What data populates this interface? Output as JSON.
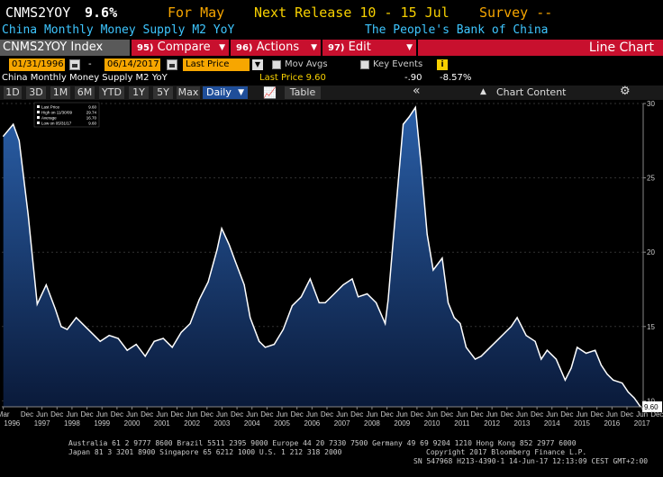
{
  "header": {
    "ticker": "CNMS2YOY",
    "price": "9.6%",
    "period": "For May",
    "next_release": "Next Release 10 - 15 Jul",
    "survey": "Survey --"
  },
  "subheader": {
    "description": "China Monthly Money Supply M2 YoY",
    "source": "The People's Bank of China"
  },
  "toolbar": {
    "index_label": "CNMS2YOY Index",
    "compare_code": "95)",
    "compare_label": "Compare",
    "actions_code": "96)",
    "actions_label": "Actions",
    "edit_code": "97)",
    "edit_label": "Edit",
    "chart_type": "Line Chart"
  },
  "controls": {
    "start_date": "01/31/1996",
    "dash": "-",
    "end_date": "06/14/2017",
    "field": "Last Price",
    "mov_avgs": "Mov Avgs",
    "key_events": "Key Events",
    "info_icon": "i"
  },
  "legend_row": {
    "name": "China Monthly Money Supply M2 YoY",
    "last_price": "Last Price 9.60",
    "change": "-.90",
    "change_pct": "-8.57%"
  },
  "period_bar": {
    "buttons": [
      "1D",
      "3D",
      "1M",
      "6M",
      "YTD",
      "1Y",
      "5Y",
      "Max"
    ],
    "frequency": "Daily",
    "table_label": "Table",
    "chart_content_label": "Chart Content",
    "collapse_icon": "«",
    "settings_icon": "gear-icon"
  },
  "footer": {
    "line1": "Australia 61 2 9777 8600 Brazil 5511 2395 9000 Europe 44 20 7330 7500 Germany 49 69 9204 1210 Hong Kong 852 2977 6000",
    "line2a": "Japan 81 3 3201 8900        Singapore 65 6212 1000        U.S. 1 212 318 2000",
    "line2b": "Copyright 2017 Bloomberg Finance L.P.",
    "line3": "SN 547968 H213-4390-1 14-Jun-17 12:13:09 CEST GMT+2:00"
  },
  "chart_data": {
    "type": "area",
    "ylim": [
      9.6,
      30
    ],
    "yticks": [
      10,
      15,
      20,
      25,
      30
    ],
    "last_value_label": "9.60",
    "legend_box": {
      "items": [
        {
          "label": "Last Price",
          "value": "9.60"
        },
        {
          "label": "High on 11/30/09",
          "value": "29.74"
        },
        {
          "label": "Average",
          "value": "16.70"
        },
        {
          "label": "Low on 05/31/17",
          "value": "9.60"
        }
      ]
    },
    "x_tick_labels": [
      "Mar",
      "Dec",
      "Jun",
      "Dec",
      "Jun",
      "Dec",
      "Jun",
      "Dec",
      "Jun",
      "Dec",
      "Jun",
      "Dec",
      "Jun",
      "Dec",
      "Jun",
      "Dec",
      "Jun",
      "Dec",
      "Jun",
      "Dec",
      "Jun",
      "Dec",
      "Jun",
      "Dec",
      "Jun",
      "Dec",
      "Jun",
      "Dec",
      "Jun",
      "Dec",
      "Jun",
      "Dec",
      "Jun",
      "Dec",
      "Jun",
      "Dec",
      "Jun",
      "Dec",
      "Jun",
      "Dec",
      "Jun",
      "Dec",
      "Jun",
      "Dec"
    ],
    "x_year_labels": [
      "1996",
      "1997",
      "1998",
      "1999",
      "2000",
      "2001",
      "2002",
      "2003",
      "2004",
      "2005",
      "2006",
      "2007",
      "2008",
      "2009",
      "2010",
      "2011",
      "2012",
      "2013",
      "2014",
      "2015",
      "2016",
      "2017"
    ],
    "series": [
      {
        "x": [
          1996.17,
          1996.5,
          1996.7,
          1997.0,
          1997.3,
          1997.6,
          1997.9,
          1998.1,
          1998.3,
          1998.6,
          1998.9,
          1999.2,
          1999.4,
          1999.7,
          2000.0,
          2000.3,
          2000.6,
          2000.9,
          2001.2,
          2001.5,
          2001.8,
          2002.1,
          2002.4,
          2002.7,
          2003.0,
          2003.3,
          2003.45,
          2003.7,
          2003.9,
          2004.2,
          2004.4,
          2004.7,
          2004.9,
          2005.2,
          2005.5,
          2005.8,
          2006.1,
          2006.4,
          2006.7,
          2006.9,
          2007.2,
          2007.5,
          2007.8,
          2008.0,
          2008.3,
          2008.6,
          2008.9,
          2009.0,
          2009.2,
          2009.5,
          2009.7,
          2009.91,
          2010.1,
          2010.3,
          2010.5,
          2010.8,
          2011.0,
          2011.2,
          2011.4,
          2011.6,
          2011.9,
          2012.1,
          2012.3,
          2012.6,
          2012.9,
          2013.1,
          2013.3,
          2013.6,
          2013.9,
          2014.1,
          2014.3,
          2014.6,
          2014.9,
          2015.1,
          2015.3,
          2015.6,
          2015.9,
          2016.1,
          2016.3,
          2016.5,
          2016.8,
          2017.0,
          2017.2,
          2017.41
        ],
        "y": [
          27.8,
          28.6,
          27.5,
          22.5,
          16.5,
          17.8,
          16.2,
          15.0,
          14.8,
          15.6,
          15.0,
          14.4,
          14.0,
          14.4,
          14.2,
          13.4,
          13.8,
          13.0,
          14.0,
          14.2,
          13.6,
          14.6,
          15.2,
          16.8,
          18.0,
          20.2,
          21.6,
          20.5,
          19.4,
          17.8,
          15.6,
          14.0,
          13.6,
          13.8,
          14.8,
          16.4,
          17.0,
          18.2,
          16.6,
          16.6,
          17.2,
          17.8,
          18.2,
          17.0,
          17.2,
          16.6,
          15.2,
          16.8,
          21.6,
          28.6,
          29.1,
          29.74,
          25.8,
          21.2,
          18.8,
          19.6,
          16.6,
          15.6,
          15.2,
          13.6,
          12.8,
          13.0,
          13.4,
          14.0,
          14.6,
          15.0,
          15.6,
          14.4,
          14.0,
          12.8,
          13.4,
          12.8,
          11.4,
          12.2,
          13.6,
          13.2,
          13.4,
          12.4,
          11.8,
          11.4,
          11.2,
          10.6,
          10.2,
          9.6
        ]
      }
    ]
  }
}
